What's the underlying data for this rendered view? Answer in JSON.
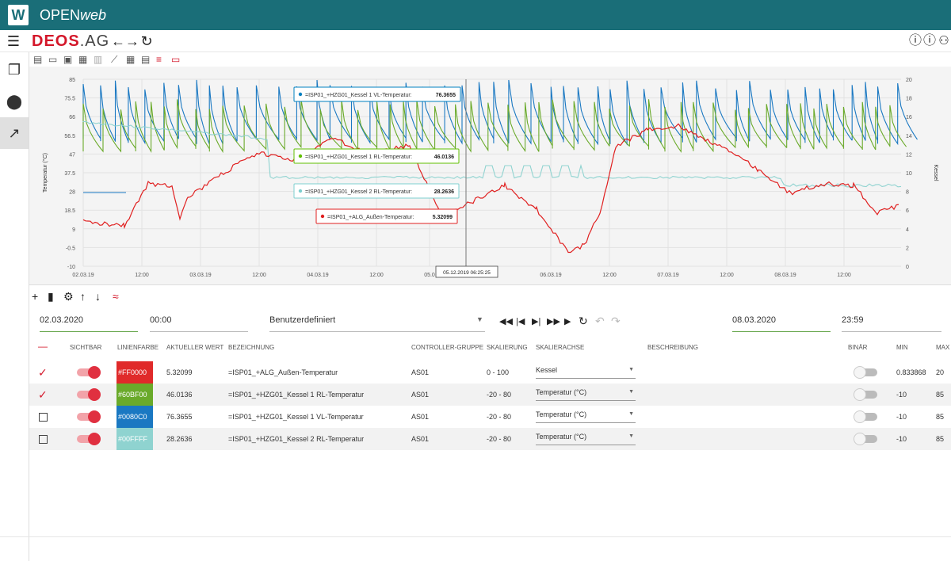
{
  "app": {
    "logo_letter": "W",
    "title_plain": "OPEN",
    "title_italic": "web"
  },
  "nav": {
    "brand_main": "DEOS",
    "brand_sub": ".AG"
  },
  "colors": {
    "red": "#FF0000",
    "green": "#60BF00",
    "blue": "#0080C0",
    "cyan": "#00FFFF",
    "accent": "#1a6e78"
  },
  "chart_data": {
    "type": "line",
    "yaxis_left": {
      "label": "Temperatur (°C)",
      "ticks": [
        "85",
        "75.5",
        "66",
        "56.5",
        "47",
        "37.5",
        "28",
        "18.5",
        "9",
        "-0.5",
        "-10"
      ],
      "range": [
        -10,
        85
      ]
    },
    "yaxis_right": {
      "label": "Kessel",
      "ticks": [
        "20",
        "18",
        "16",
        "14",
        "12",
        "10",
        "8",
        "6",
        "4",
        "2",
        "0"
      ],
      "range": [
        0,
        20
      ]
    },
    "xaxis": {
      "ticks": [
        "02.03.19",
        "12:00",
        "03.03.19",
        "12:00",
        "04.03.19",
        "12:00",
        "05.0",
        "06.03.19",
        "12:00",
        "07.03.19",
        "12:00",
        "08.03.19",
        "12:00"
      ]
    },
    "cursor_label": "05.12.2019 06:25:25",
    "tooltips": [
      {
        "text": "=ISP01_+HZG01_Kessel 1 VL-Temperatur:",
        "value": "76.3655",
        "color": "#0080C0"
      },
      {
        "text": "=ISP01_+HZG01_Kessel 1 RL-Temperatur:",
        "value": "46.0136",
        "color": "#60BF00"
      },
      {
        "text": "=ISP01_+HZG01_Kessel 2 RL-Temperatur:",
        "value": "28.2636",
        "color": "#7ecfcf"
      },
      {
        "text": "=ISP01_+ALG_Außen-Temperatur:",
        "value": "5.32099",
        "color": "#e02020"
      }
    ]
  },
  "controls": {
    "start_date": "02.03.2020",
    "start_time": "00:00",
    "range_mode": "Benutzerdefiniert",
    "end_date": "08.03.2020",
    "end_time": "23:59"
  },
  "table": {
    "headers": {
      "sichtbar": "SICHTBAR",
      "linienfarbe": "LINIENFARBE",
      "aktueller_wert": "AKTUELLER WERT",
      "bezeichnung": "BEZEICHNUNG",
      "controller_gruppe": "CONTROLLER-GRUPPE",
      "skalierung": "SKALIERUNG",
      "skalierachse": "SKALIERACHSE",
      "beschreibung": "BESCHREIBUNG",
      "binaer": "BINÄR",
      "min": "MIN",
      "max": "MAX"
    },
    "rows": [
      {
        "color_hex": "#FF0000",
        "value": "5.32099",
        "name": "=ISP01_+ALG_Außen-Temperatur",
        "group": "AS01",
        "scale": "0 - 100",
        "axis": "Kessel",
        "min": "0.833868",
        "max": "20"
      },
      {
        "color_hex": "#60BF00",
        "value": "46.0136",
        "name": "=ISP01_+HZG01_Kessel 1 RL-Temperatur",
        "group": "AS01",
        "scale": "-20 - 80",
        "axis": "Temperatur (°C)",
        "min": "-10",
        "max": "85"
      },
      {
        "color_hex": "#0080C0",
        "value": "76.3655",
        "name": "=ISP01_+HZG01_Kessel 1 VL-Temperatur",
        "group": "AS01",
        "scale": "-20 - 80",
        "axis": "Temperatur (°C)",
        "min": "-10",
        "max": "85"
      },
      {
        "color_hex": "#00FFFF",
        "value": "28.2636",
        "name": "=ISP01_+HZG01_Kessel 2 RL-Temperatur",
        "group": "AS01",
        "scale": "-20 - 80",
        "axis": "Temperatur (°C)",
        "min": "-10",
        "max": "85"
      }
    ]
  }
}
